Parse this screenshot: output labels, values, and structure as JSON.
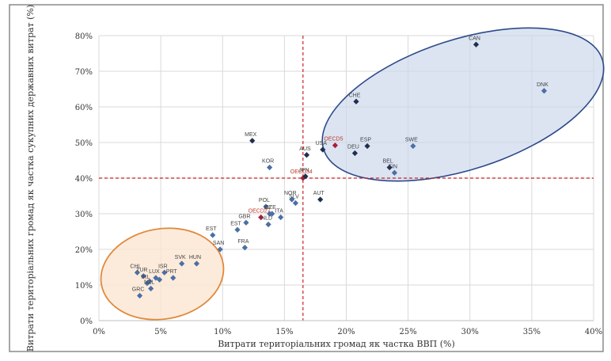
{
  "chart_data": {
    "type": "scatter",
    "xlabel": "Витрати територіальних громад як частка ВВП (%)",
    "ylabel": "Витрати територіальних громад як частка сукупних державних витрат (%)",
    "xlim": [
      0,
      40
    ],
    "ylim": [
      0,
      80
    ],
    "x_ticks": [
      0,
      5,
      10,
      15,
      20,
      25,
      30,
      35,
      40
    ],
    "y_ticks": [
      0,
      10,
      20,
      30,
      40,
      50,
      60,
      70,
      80
    ],
    "x_tick_labels": [
      "0%",
      "5%",
      "10%",
      "15%",
      "20%",
      "25%",
      "30%",
      "35%",
      "40%"
    ],
    "y_tick_labels": [
      "0%",
      "10%",
      "20%",
      "30%",
      "40%",
      "50%",
      "60%",
      "70%",
      "80%"
    ],
    "grid": true,
    "reference_lines": {
      "x": 16.5,
      "y": 40
    },
    "colors": {
      "blue": "#4a6fa5",
      "navy": "#1f2f4f",
      "red": "#a8203a",
      "refline": "#cc2222",
      "ellipse_blue_fill": "#cdd9ec",
      "ellipse_blue_stroke": "#2c4a8a",
      "ellipse_orange_fill": "#fbe6d2",
      "ellipse_orange_stroke": "#e08a3c"
    },
    "points": [
      {
        "label": "CAN",
        "x": 30.5,
        "y": 77.5,
        "color": "navy"
      },
      {
        "label": "DNK",
        "x": 36.0,
        "y": 64.5,
        "color": "blue"
      },
      {
        "label": "CHE",
        "x": 20.8,
        "y": 61.5,
        "color": "navy"
      },
      {
        "label": "MEX",
        "x": 12.4,
        "y": 50.5,
        "color": "navy"
      },
      {
        "label": "OECD5",
        "x": 19.1,
        "y": 49.2,
        "color": "red"
      },
      {
        "label": "SWE",
        "x": 25.4,
        "y": 49.0,
        "color": "blue"
      },
      {
        "label": "ESP",
        "x": 21.7,
        "y": 49.0,
        "color": "navy"
      },
      {
        "label": "USA",
        "x": 18.1,
        "y": 48.0,
        "color": "navy"
      },
      {
        "label": "AUS",
        "x": 16.8,
        "y": 46.5,
        "color": "navy"
      },
      {
        "label": "DEU",
        "x": 20.7,
        "y": 47.0,
        "color": "navy"
      },
      {
        "label": "BEL",
        "x": 23.5,
        "y": 43.0,
        "color": "navy"
      },
      {
        "label": "FIN",
        "x": 23.9,
        "y": 41.5,
        "color": "blue"
      },
      {
        "label": "KOR",
        "x": 13.8,
        "y": 43.0,
        "color": "blue"
      },
      {
        "label": "OECD34",
        "x": 16.5,
        "y": 40.0,
        "color": "red"
      },
      {
        "label": "JPN",
        "x": 16.7,
        "y": 40.5,
        "color": "navy"
      },
      {
        "label": "AUT",
        "x": 17.9,
        "y": 34.0,
        "color": "navy"
      },
      {
        "label": "NOR",
        "x": 15.6,
        "y": 34.0,
        "color": "blue"
      },
      {
        "label": "SLV",
        "x": 15.9,
        "y": 33.0,
        "color": "blue"
      },
      {
        "label": "POL",
        "x": 13.5,
        "y": 32.0,
        "color": "blue"
      },
      {
        "label": "ISL",
        "x": 13.8,
        "y": 30.0,
        "color": "blue"
      },
      {
        "label": "CZE",
        "x": 14.0,
        "y": 30.0,
        "color": "blue"
      },
      {
        "label": "ITA",
        "x": 14.7,
        "y": 29.0,
        "color": "blue"
      },
      {
        "label": "OECD27",
        "x": 13.1,
        "y": 29.0,
        "color": "red"
      },
      {
        "label": "NLD",
        "x": 13.7,
        "y": 27.0,
        "color": "blue"
      },
      {
        "label": "GBR",
        "x": 11.9,
        "y": 27.5,
        "color": "blue"
      },
      {
        "label": "EST",
        "x": 11.2,
        "y": 25.5,
        "color": "blue"
      },
      {
        "label": "EST",
        "x": 9.2,
        "y": 24.0,
        "color": "blue"
      },
      {
        "label": "FRA",
        "x": 11.8,
        "y": 20.5,
        "color": "blue"
      },
      {
        "label": "SAN",
        "x": 9.8,
        "y": 20.0,
        "color": "blue"
      },
      {
        "label": "HUN",
        "x": 7.9,
        "y": 16.0,
        "color": "blue"
      },
      {
        "label": "SVK",
        "x": 6.7,
        "y": 16.0,
        "color": "blue"
      },
      {
        "label": "ISR",
        "x": 5.3,
        "y": 13.5,
        "color": "blue"
      },
      {
        "label": "CHL",
        "x": 3.1,
        "y": 13.5,
        "color": "blue"
      },
      {
        "label": "TUR",
        "x": 3.6,
        "y": 12.5,
        "color": "blue"
      },
      {
        "label": "LUX",
        "x": 4.6,
        "y": 12.0,
        "color": "blue"
      },
      {
        "label": "PRT",
        "x": 6.0,
        "y": 12.0,
        "color": "blue"
      },
      {
        "label": "IRL",
        "x": 3.9,
        "y": 10.5,
        "color": "blue"
      },
      {
        "label": "NZL",
        "x": 4.2,
        "y": 9.0,
        "color": "blue"
      },
      {
        "label": "GRC",
        "x": 3.3,
        "y": 7.0,
        "color": "blue"
      },
      {
        "label": "",
        "x": 4.9,
        "y": 11.5,
        "color": "blue"
      },
      {
        "label": "",
        "x": 4.1,
        "y": 11.0,
        "color": "blue"
      }
    ]
  }
}
